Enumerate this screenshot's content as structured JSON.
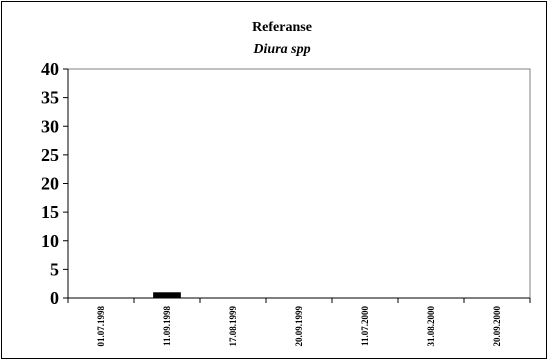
{
  "chart_data": {
    "type": "bar",
    "title": "Referanse",
    "subtitle": "Diura spp",
    "xlabel": "",
    "ylabel": "",
    "categories": [
      "01.07.1998",
      "11.09.1998",
      "17.08.1999",
      "20.09.1999",
      "11.07.2000",
      "31.08.2000",
      "20.09.2000"
    ],
    "values": [
      0,
      1,
      0,
      0,
      0,
      0,
      0
    ],
    "ylim": [
      0,
      40
    ],
    "yticks": [
      0,
      5,
      10,
      15,
      20,
      25,
      30,
      35,
      40
    ],
    "grid": false,
    "bar_color": "#000000",
    "plot_background": "#ffffff"
  }
}
